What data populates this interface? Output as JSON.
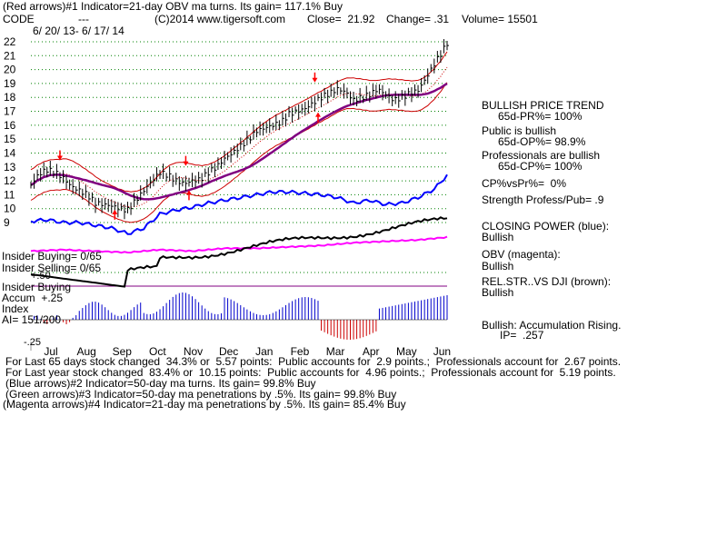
{
  "header": {
    "line1": "(Red arrows)#1 Indicator=21-day OBV ma turns. Its gain= 117.1% Buy",
    "code_label": "CODE",
    "code_value": "---",
    "copyright": "(C)2014 www.tigersoft.com",
    "close": "Close=  21.92",
    "change": "Change= .31",
    "volume": "Volume= 15501",
    "date_range": "6/ 20/ 13- 6/ 17/ 14"
  },
  "right_panel": {
    "trend_title": "BULLISH PRICE TREND",
    "pr": "65d-PR%= 100%",
    "public": "Public is bullish",
    "op": "65d-OP%= 98.9%",
    "professionals": "Professionals are bullish",
    "cp": "65d-CP%= 100%",
    "cpvspr": "CP%vsPr%=  0%",
    "strength": "Strength Profess/Pub= .9",
    "closing_power": "CLOSING POWER (blue):",
    "closing_power_state": "Bullish",
    "obv": "OBV (magenta):",
    "obv_state": "Bullish",
    "relstr": "REL.STR..VS DJI (brown):",
    "relstr_state": "Bullish",
    "accum": "Bullish: Accumulation Rising.",
    "ip": "IP=  .257"
  },
  "left_labels": {
    "insider_buying": "Insider Buying= 0/65",
    "insider_selling": "Insider Selling= 0/65",
    "insider_buying2": "Insider Buying",
    "accum": "Accum  +.25",
    "index": "Index",
    "ai": "AI= 151/200",
    "neg_50": "+.50",
    "neg_25": "-.25"
  },
  "footer": [
    "For Last 65 days stock changed  34.3% or  5.57 points:  Public accounts for  2.9 points.;  Professionals account for  2.67 points.",
    "For Last year stock changed  83.4% or  10.15 points:  Public accounts for  4.96 points.;  Professionals account for  5.19 points.",
    "(Blue arrows)#2 Indicator=50-day ma turns. Its gain= 99.8% Buy",
    "(Green arrows)#3 Indicator=50-day ma penetrations by .5%. Its gain= 99.8% Buy",
    "(Magenta arrows)#4 Indicator=21-day ma penetrations by .5%. Its gain= 85.4% Buy"
  ],
  "colors": {
    "price": "#000000",
    "band": "#cc0000",
    "ma50": "#800080",
    "closing_power": "#0000ff",
    "obv": "#ff00ff",
    "relstr": "#000000",
    "accum_pos": "#0000cc",
    "accum_neg": "#cc0000",
    "arrow": "#ff0000",
    "grid": "#008000"
  },
  "chart_data": {
    "type": "line",
    "ylim": [
      9,
      22
    ],
    "y_ticks": [
      "22",
      "21",
      "20",
      "19",
      "18",
      "17",
      "16",
      "15",
      "14",
      "13",
      "12",
      "11",
      "10",
      "9"
    ],
    "x_ticks": [
      "Jul",
      "Aug",
      "Sep",
      "Oct",
      "Nov",
      "Dec",
      "Jan",
      "Feb",
      "Mar",
      "Apr",
      "May",
      "Jun"
    ],
    "grid": true,
    "series": [
      {
        "x": [
          0,
          5,
          10,
          15,
          20,
          25,
          30,
          35,
          40,
          45,
          50,
          55,
          60,
          65,
          70,
          75,
          80,
          85,
          90,
          95,
          100,
          105,
          110,
          115,
          120,
          125,
          130,
          135,
          140,
          145,
          150,
          155,
          160,
          165,
          170,
          175,
          180,
          185,
          190,
          195,
          200,
          205,
          210,
          215,
          220,
          225,
          230,
          235,
          240,
          245,
          250,
          255,
          258
        ],
        "values": [
          11.7,
          12.5,
          12.8,
          12.6,
          12.2,
          11.6,
          11.3,
          11.0,
          10.4,
          10.3,
          10.2,
          10.0,
          9.9,
          10.6,
          11.3,
          12.0,
          12.6,
          12.4,
          12.0,
          11.8,
          12.0,
          12.1,
          12.6,
          13.0,
          13.6,
          14.0,
          14.5,
          15.0,
          15.6,
          15.8,
          16.0,
          16.2,
          16.8,
          17.0,
          17.2,
          17.6,
          18.0,
          18.3,
          18.6,
          18.4,
          17.8,
          18.0,
          18.2,
          18.6,
          18.2,
          17.8,
          18.0,
          18.3,
          18.5,
          19.4,
          20.4,
          21.3,
          21.9
        ]
      },
      {
        "name": "OBV",
        "x": [
          0,
          20,
          40,
          60,
          80,
          100,
          120,
          140,
          160,
          180,
          200,
          220,
          240,
          258
        ],
        "values": [
          7.6,
          7.7,
          7.6,
          7.5,
          7.7,
          7.6,
          7.8,
          7.8,
          7.9,
          8.0,
          8.2,
          8.3,
          8.4,
          8.6
        ]
      },
      {
        "name": "Closing Power",
        "x": [
          0,
          10,
          20,
          30,
          40,
          50,
          60,
          70,
          80,
          90,
          100,
          110,
          120,
          130,
          140,
          150,
          160,
          170,
          180,
          190,
          200,
          210,
          220,
          230,
          240,
          250,
          258
        ],
        "values": [
          9.1,
          9.2,
          9.0,
          9.0,
          8.8,
          8.6,
          8.2,
          8.6,
          9.6,
          9.9,
          10.1,
          10.4,
          10.6,
          10.8,
          11.0,
          11.2,
          11.2,
          11.1,
          11.0,
          10.8,
          10.4,
          10.6,
          10.3,
          10.4,
          10.8,
          11.4,
          12.4
        ]
      }
    ]
  }
}
